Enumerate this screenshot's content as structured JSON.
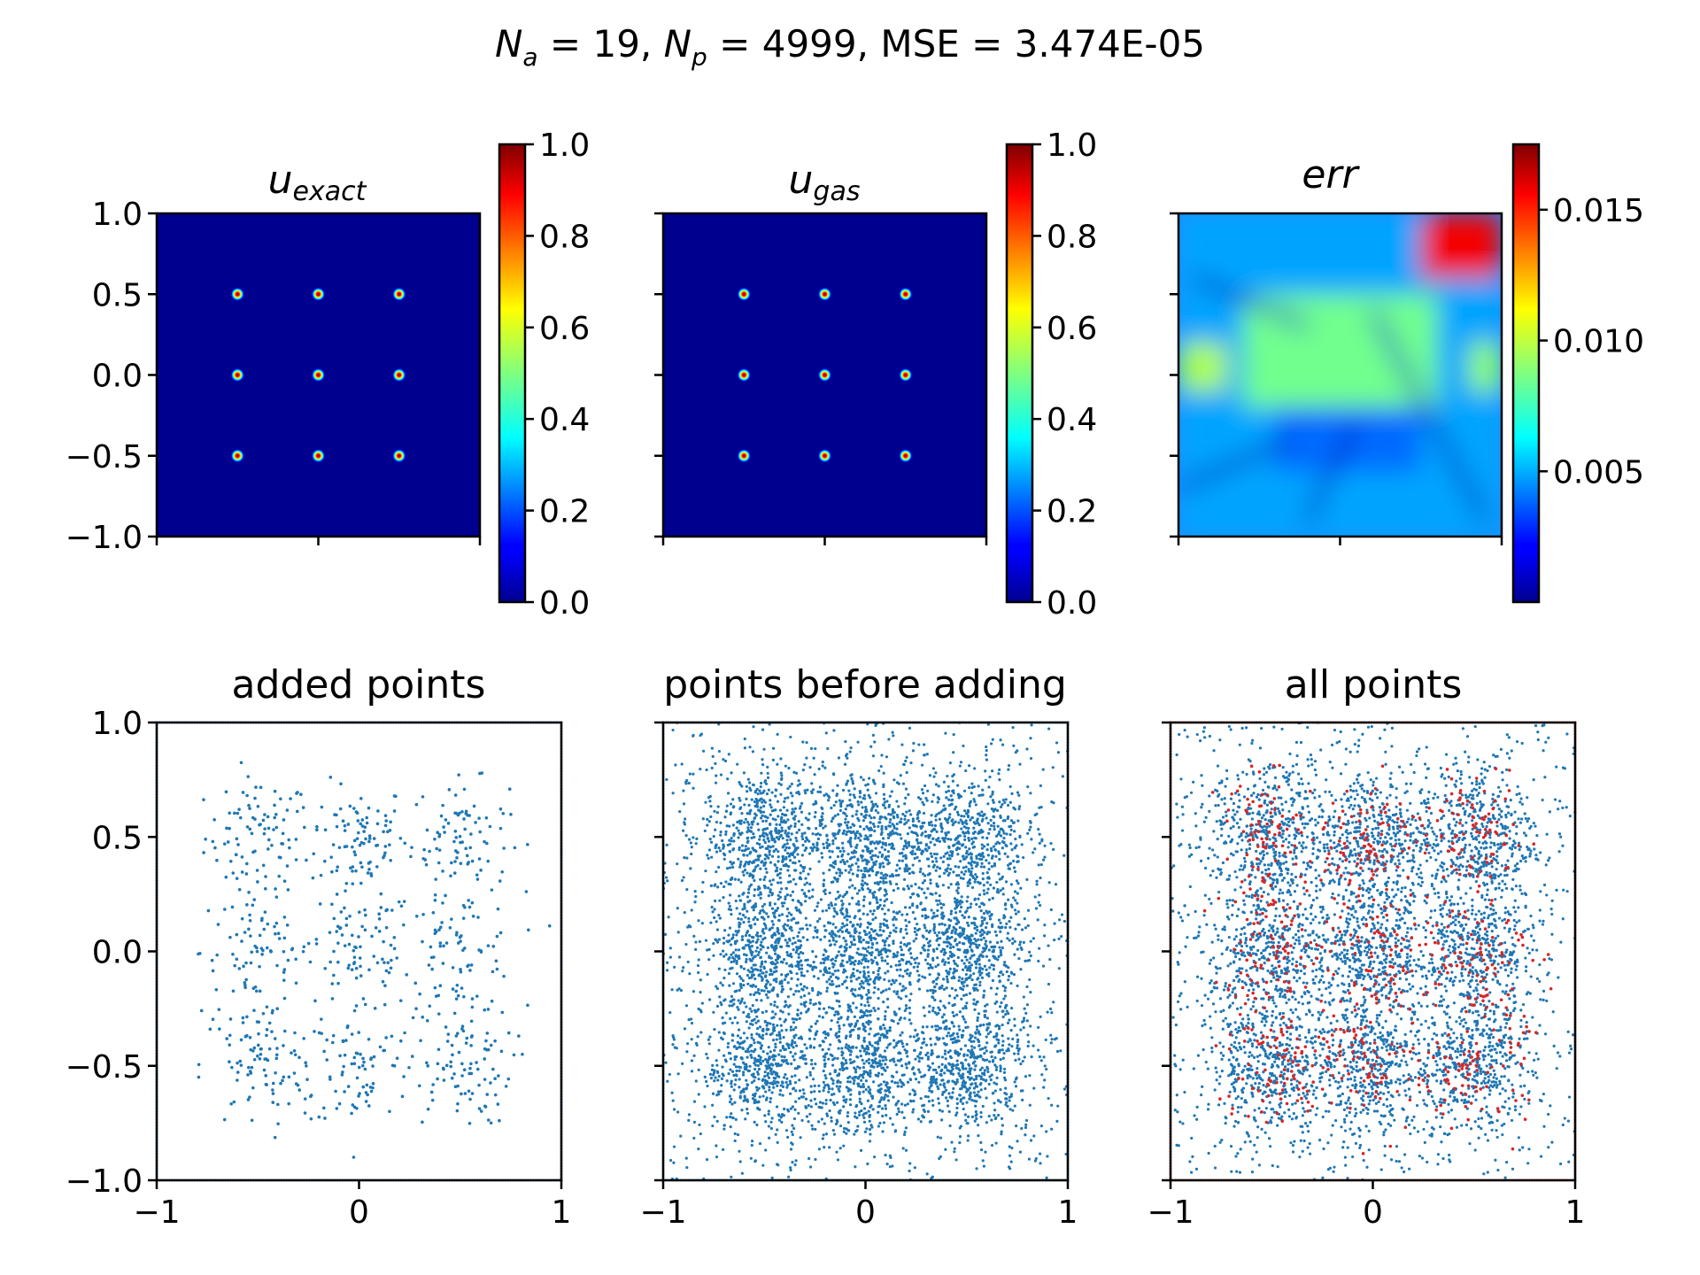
{
  "figure": {
    "suptitle": {
      "Na": "19",
      "Np": "4999",
      "mse": "3.474E-05"
    }
  },
  "chart_data": [
    {
      "type": "heatmap",
      "title": "u_exact",
      "title_main": "u",
      "title_sub": "exact",
      "xlim": [
        -1,
        1
      ],
      "ylim": [
        -1,
        1
      ],
      "yticks": [
        "1.0",
        "0.5",
        "0.0",
        "−0.5",
        "−1.0"
      ],
      "ytick_values": [
        1.0,
        0.5,
        0.0,
        -0.5,
        -1.0
      ],
      "xtick_values": [
        -1,
        0,
        1
      ],
      "colormap": "jet",
      "background_value": 0.0,
      "peaks": [
        [
          -0.5,
          0.5
        ],
        [
          0,
          0.5
        ],
        [
          0.5,
          0.5
        ],
        [
          -0.5,
          0
        ],
        [
          0,
          0
        ],
        [
          0.5,
          0
        ],
        [
          -0.5,
          -0.5
        ],
        [
          0,
          -0.5
        ],
        [
          0.5,
          -0.5
        ]
      ],
      "peak_value": 1.0,
      "colorbar": {
        "min": 0.0,
        "max": 1.0,
        "ticks": [
          "0.0",
          "0.2",
          "0.4",
          "0.6",
          "0.8",
          "1.0"
        ],
        "tick_values": [
          0.0,
          0.2,
          0.4,
          0.6,
          0.8,
          1.0
        ]
      }
    },
    {
      "type": "heatmap",
      "title": "u_gas",
      "title_main": "u",
      "title_sub": "gas",
      "xlim": [
        -1,
        1
      ],
      "ylim": [
        -1,
        1
      ],
      "xtick_values": [
        -1,
        0,
        1
      ],
      "ytick_values": [
        1.0,
        0.5,
        0.0,
        -0.5,
        -1.0
      ],
      "colormap": "jet",
      "background_value": 0.0,
      "peaks": [
        [
          -0.5,
          0.5
        ],
        [
          0,
          0.5
        ],
        [
          0.5,
          0.5
        ],
        [
          -0.5,
          0
        ],
        [
          0,
          0
        ],
        [
          0.5,
          0
        ],
        [
          -0.5,
          -0.5
        ],
        [
          0,
          -0.5
        ],
        [
          0.5,
          -0.5
        ]
      ],
      "peak_value": 1.0,
      "colorbar": {
        "min": 0.0,
        "max": 1.0,
        "ticks": [
          "0.0",
          "0.2",
          "0.4",
          "0.6",
          "0.8",
          "1.0"
        ],
        "tick_values": [
          0.0,
          0.2,
          0.4,
          0.6,
          0.8,
          1.0
        ]
      }
    },
    {
      "type": "heatmap",
      "title": "err",
      "xlim": [
        -1,
        1
      ],
      "ylim": [
        -1,
        1
      ],
      "xtick_values": [
        -1,
        0,
        1
      ],
      "ytick_values": [
        1.0,
        0.5,
        0.0,
        -0.5,
        -1.0
      ],
      "colormap": "jet",
      "regions": [
        {
          "label": "top-right corner",
          "x": [
            0.5,
            1.0
          ],
          "y": [
            0.6,
            1.0
          ],
          "value": 0.0155
        },
        {
          "label": "central band",
          "x": [
            -0.6,
            0.6
          ],
          "y": [
            -0.2,
            0.5
          ],
          "value": 0.0085
        },
        {
          "label": "lower interior",
          "x": [
            -0.4,
            0.5
          ],
          "y": [
            -0.6,
            -0.1
          ],
          "value": 0.004
        },
        {
          "label": "left edge",
          "x": [
            -1.0,
            -0.7
          ],
          "y": [
            -0.1,
            0.2
          ],
          "value": 0.0095
        },
        {
          "label": "right edge",
          "x": [
            0.8,
            1.0
          ],
          "y": [
            -0.1,
            0.2
          ],
          "value": 0.009
        },
        {
          "label": "background",
          "x": [
            -1.0,
            1.0
          ],
          "y": [
            -1.0,
            1.0
          ],
          "value": 0.005
        }
      ],
      "colorbar": {
        "min": 0.0,
        "max": 0.0175,
        "ticks": [
          "0.005",
          "0.010",
          "0.015"
        ],
        "tick_values": [
          0.005,
          0.01,
          0.015
        ]
      }
    },
    {
      "type": "scatter",
      "title": "added points",
      "xlim": [
        -1,
        1
      ],
      "ylim": [
        -1,
        1
      ],
      "xticks": [
        "−1",
        "0",
        "1"
      ],
      "xtick_values": [
        -1,
        0,
        1
      ],
      "yticks": [
        "1.0",
        "0.5",
        "0.0",
        "−0.5",
        "−1.0"
      ],
      "ytick_values": [
        1.0,
        0.5,
        0.0,
        -0.5,
        -1.0
      ],
      "marker_color": "#1f77b4",
      "clusters": [
        {
          "center": [
            -0.5,
            0.5
          ],
          "spread": 0.13
        },
        {
          "center": [
            0.0,
            0.5
          ],
          "spread": 0.12
        },
        {
          "center": [
            0.5,
            0.5
          ],
          "spread": 0.12
        },
        {
          "center": [
            -0.5,
            0.0
          ],
          "spread": 0.14
        },
        {
          "center": [
            0.0,
            0.0
          ],
          "spread": 0.14
        },
        {
          "center": [
            0.5,
            0.0
          ],
          "spread": 0.14
        },
        {
          "center": [
            -0.5,
            -0.5
          ],
          "spread": 0.14
        },
        {
          "center": [
            0.0,
            -0.5
          ],
          "spread": 0.14
        },
        {
          "center": [
            0.5,
            -0.5
          ],
          "spread": 0.13
        }
      ],
      "boundary_points": true
    },
    {
      "type": "scatter",
      "title": "points before adding",
      "xlim": [
        -1,
        1
      ],
      "ylim": [
        -1,
        1
      ],
      "xticks": [
        "−1",
        "0",
        "1"
      ],
      "xtick_values": [
        -1,
        0,
        1
      ],
      "ytick_values": [
        1.0,
        0.5,
        0.0,
        -0.5,
        -1.0
      ],
      "marker_color": "#1f77b4",
      "clusters": [
        {
          "center": [
            -0.5,
            0.5
          ],
          "spread": 0.15
        },
        {
          "center": [
            0.0,
            0.5
          ],
          "spread": 0.15
        },
        {
          "center": [
            0.5,
            0.5
          ],
          "spread": 0.15
        },
        {
          "center": [
            -0.5,
            0.0
          ],
          "spread": 0.15
        },
        {
          "center": [
            0.0,
            0.0
          ],
          "spread": 0.15
        },
        {
          "center": [
            0.5,
            0.0
          ],
          "spread": 0.15
        },
        {
          "center": [
            -0.5,
            -0.5
          ],
          "spread": 0.15
        },
        {
          "center": [
            0.0,
            -0.5
          ],
          "spread": 0.15
        },
        {
          "center": [
            0.5,
            -0.5
          ],
          "spread": 0.15
        }
      ],
      "uniform_background": true,
      "boundary_points": true
    },
    {
      "type": "scatter",
      "title": "all points",
      "xlim": [
        -1,
        1
      ],
      "ylim": [
        -1,
        1
      ],
      "xticks": [
        "−1",
        "0",
        "1"
      ],
      "xtick_values": [
        -1,
        0,
        1
      ],
      "ytick_values": [
        1.0,
        0.5,
        0.0,
        -0.5,
        -1.0
      ],
      "series": [
        {
          "marker_color": "#1f77b4"
        },
        {
          "marker_color": "#d62728"
        }
      ],
      "boundary_points": true
    }
  ]
}
